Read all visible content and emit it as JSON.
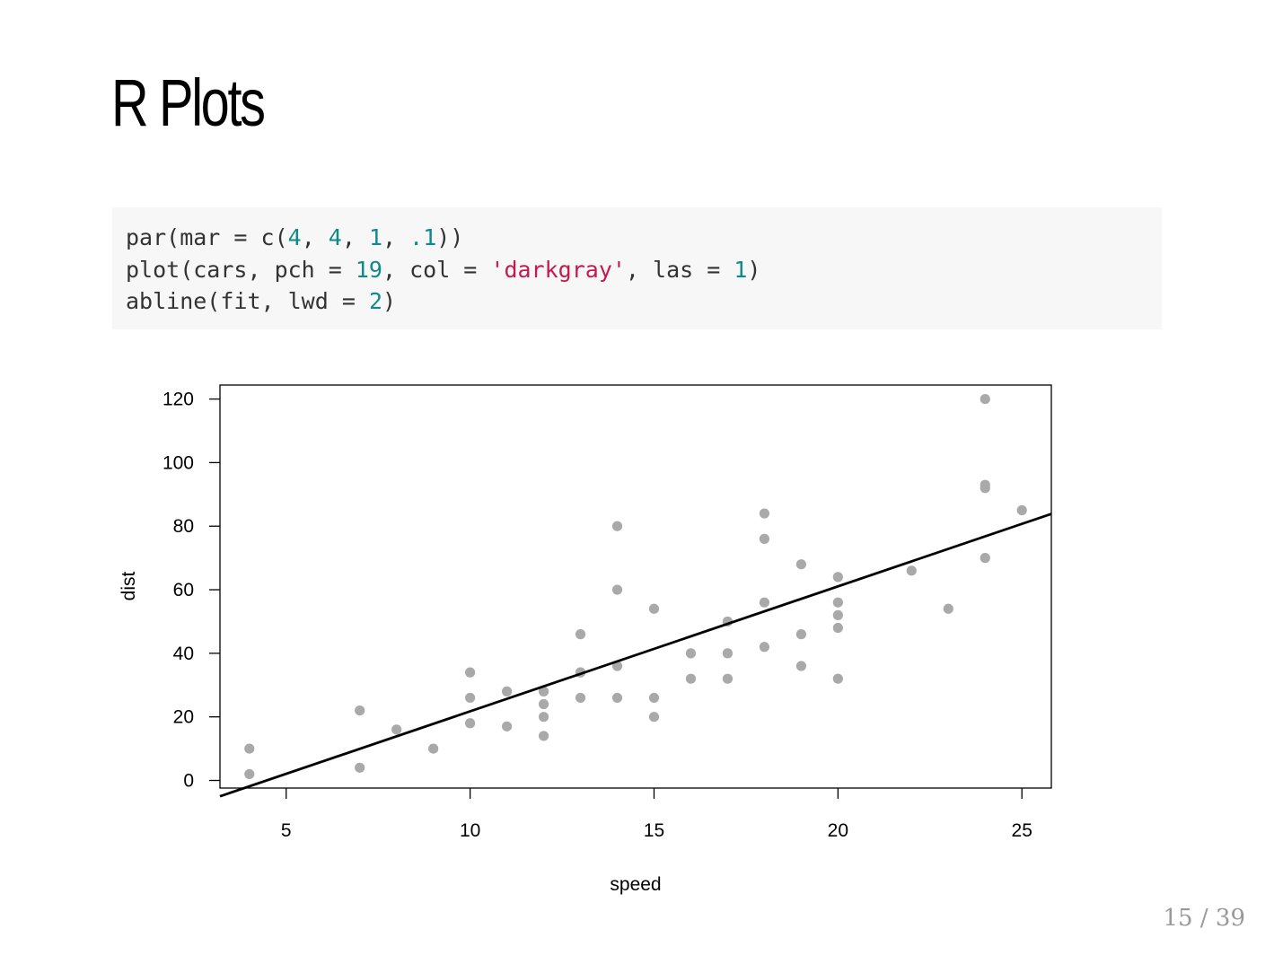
{
  "slide": {
    "title": "R Plots",
    "page_current": "15",
    "page_total": "39"
  },
  "code": {
    "lines": [
      [
        {
          "t": "par(mar = c(",
          "k": "plain"
        },
        {
          "t": "4",
          "k": "num"
        },
        {
          "t": ", ",
          "k": "plain"
        },
        {
          "t": "4",
          "k": "num"
        },
        {
          "t": ", ",
          "k": "plain"
        },
        {
          "t": "1",
          "k": "num"
        },
        {
          "t": ", ",
          "k": "plain"
        },
        {
          "t": ".1",
          "k": "num"
        },
        {
          "t": "))",
          "k": "plain"
        }
      ],
      [
        {
          "t": "plot(cars, pch = ",
          "k": "plain"
        },
        {
          "t": "19",
          "k": "num"
        },
        {
          "t": ", col = ",
          "k": "plain"
        },
        {
          "t": "'darkgray'",
          "k": "str"
        },
        {
          "t": ", las = ",
          "k": "plain"
        },
        {
          "t": "1",
          "k": "num"
        },
        {
          "t": ")",
          "k": "plain"
        }
      ],
      [
        {
          "t": "abline(fit, lwd = ",
          "k": "plain"
        },
        {
          "t": "2",
          "k": "num"
        },
        {
          "t": ")",
          "k": "plain"
        }
      ]
    ],
    "colors": {
      "plain": "#333333",
      "num": "#0f8a8a",
      "str": "#c41a50",
      "background": "#f7f7f7"
    }
  },
  "chart_data": {
    "type": "scatter",
    "xlabel": "speed",
    "ylabel": "dist",
    "xlim": [
      3.2,
      25.8
    ],
    "ylim": [
      -2.4,
      124.4
    ],
    "x_ticks": [
      5,
      10,
      15,
      20,
      25
    ],
    "y_ticks": [
      0,
      20,
      40,
      60,
      80,
      100,
      120
    ],
    "point_color": "#a9a9a9",
    "line_color": "#000000",
    "regression_line": {
      "intercept": -17.579,
      "slope": 3.932
    },
    "points": [
      [
        4,
        2
      ],
      [
        4,
        10
      ],
      [
        7,
        4
      ],
      [
        7,
        22
      ],
      [
        8,
        16
      ],
      [
        9,
        10
      ],
      [
        10,
        18
      ],
      [
        10,
        26
      ],
      [
        10,
        34
      ],
      [
        11,
        17
      ],
      [
        11,
        28
      ],
      [
        12,
        14
      ],
      [
        12,
        20
      ],
      [
        12,
        24
      ],
      [
        12,
        28
      ],
      [
        13,
        26
      ],
      [
        13,
        34
      ],
      [
        13,
        34
      ],
      [
        13,
        46
      ],
      [
        14,
        26
      ],
      [
        14,
        36
      ],
      [
        14,
        60
      ],
      [
        14,
        80
      ],
      [
        15,
        20
      ],
      [
        15,
        26
      ],
      [
        15,
        54
      ],
      [
        16,
        32
      ],
      [
        16,
        40
      ],
      [
        17,
        32
      ],
      [
        17,
        40
      ],
      [
        17,
        50
      ],
      [
        18,
        42
      ],
      [
        18,
        56
      ],
      [
        18,
        76
      ],
      [
        18,
        84
      ],
      [
        19,
        36
      ],
      [
        19,
        46
      ],
      [
        19,
        68
      ],
      [
        20,
        32
      ],
      [
        20,
        48
      ],
      [
        20,
        52
      ],
      [
        20,
        56
      ],
      [
        20,
        64
      ],
      [
        22,
        66
      ],
      [
        23,
        54
      ],
      [
        24,
        70
      ],
      [
        24,
        92
      ],
      [
        24,
        93
      ],
      [
        24,
        120
      ],
      [
        25,
        85
      ]
    ]
  }
}
